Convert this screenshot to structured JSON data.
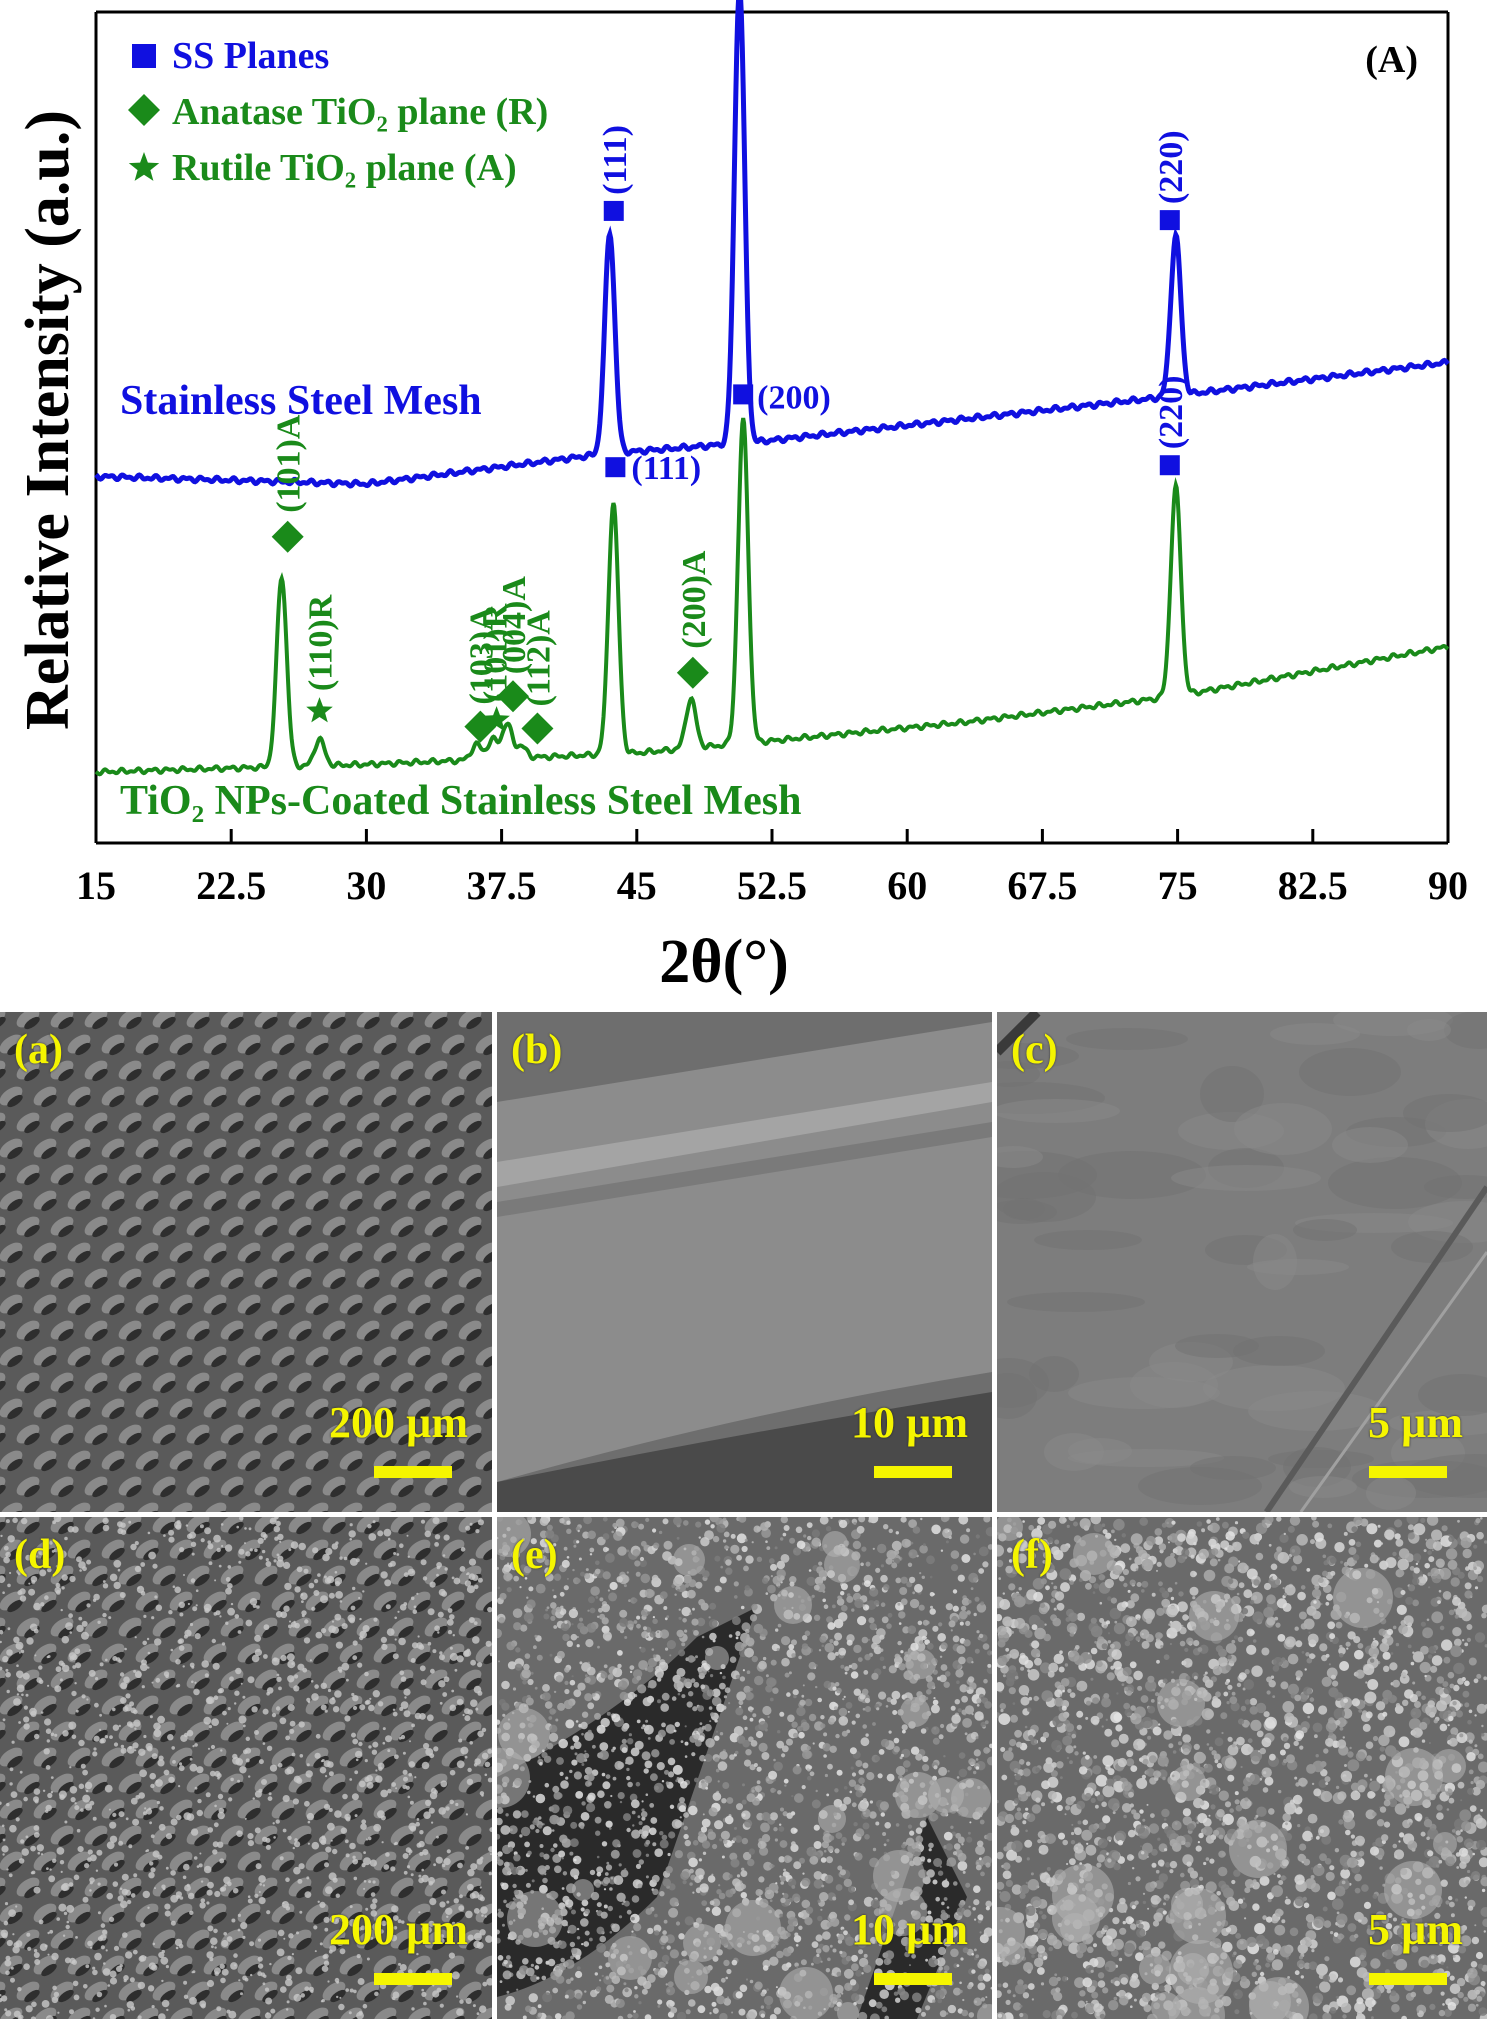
{
  "chart_data": {
    "type": "line",
    "panel_label": "(A)",
    "xlabel": "2θ(°)",
    "ylabel": "Relative Intensity (a.u.)",
    "xlim": [
      15,
      90
    ],
    "xticks": [
      "15",
      "22.5",
      "30",
      "37.5",
      "45",
      "52.5",
      "60",
      "67.5",
      "75",
      "82.5",
      "90"
    ],
    "colors": {
      "ss": "#1010e0",
      "tio2": "#1a8a1a"
    },
    "legend": [
      {
        "marker": "square",
        "text": "SS Planes",
        "color": "#1010e0"
      },
      {
        "marker": "diamond",
        "text": "Anatase TiO₂ plane (R)",
        "color": "#1a8a1a"
      },
      {
        "marker": "star",
        "text": "Rutile TiO₂ plane (A)",
        "color": "#1a8a1a"
      }
    ],
    "series": [
      {
        "name": "Stainless Steel Mesh",
        "color": "#1010e0",
        "baseline": [
          [
            15,
            0.02
          ],
          [
            30,
            0.0
          ],
          [
            43.3,
            0.08
          ],
          [
            51.5,
            0.11
          ],
          [
            74.5,
            0.23
          ],
          [
            90,
            0.32
          ]
        ],
        "peaks": [
          {
            "x": 43.5,
            "height": 0.58,
            "label": "(111)"
          },
          {
            "x": 50.7,
            "height": 1.2,
            "label": "(200)"
          },
          {
            "x": 74.9,
            "height": 0.42,
            "label": "(220)"
          }
        ]
      },
      {
        "name": "TiO₂ NPs-Coated Stainless Steel Mesh",
        "color": "#1a8a1a",
        "baseline": [
          [
            15,
            0.0
          ],
          [
            30,
            0.02
          ],
          [
            45,
            0.05
          ],
          [
            52,
            0.08
          ],
          [
            63,
            0.13
          ],
          [
            75,
            0.2
          ],
          [
            90,
            0.33
          ]
        ],
        "peaks": [
          {
            "x": 25.3,
            "height": 0.5,
            "label": "(101)A"
          },
          {
            "x": 27.4,
            "height": 0.07,
            "label": "(110)R"
          },
          {
            "x": 36.1,
            "height": 0.04,
            "label": "(103)A"
          },
          {
            "x": 37.0,
            "height": 0.05,
            "label": "(101)R"
          },
          {
            "x": 37.8,
            "height": 0.09,
            "label": "(004)A"
          },
          {
            "x": 38.6,
            "height": 0.03,
            "label": "(112)A"
          },
          {
            "x": 43.7,
            "height": 0.66,
            "label": "(111)"
          },
          {
            "x": 48.0,
            "height": 0.13,
            "label": "(200)A"
          },
          {
            "x": 50.9,
            "height": 0.85,
            "label": "(200)"
          },
          {
            "x": 74.9,
            "height": 0.55,
            "label": "(220)"
          }
        ]
      }
    ]
  },
  "sem_panels": [
    {
      "label": "(a)",
      "scale": "200 µm",
      "texture": "mesh-plain"
    },
    {
      "label": "(b)",
      "scale": "10 µm",
      "texture": "wire-smooth"
    },
    {
      "label": "(c)",
      "scale": "5 µm",
      "texture": "surface-smooth"
    },
    {
      "label": "(d)",
      "scale": "200 µm",
      "texture": "mesh-coated"
    },
    {
      "label": "(e)",
      "scale": "10 µm",
      "texture": "wire-coated"
    },
    {
      "label": "(f)",
      "scale": "5 µm",
      "texture": "surface-coated"
    }
  ]
}
